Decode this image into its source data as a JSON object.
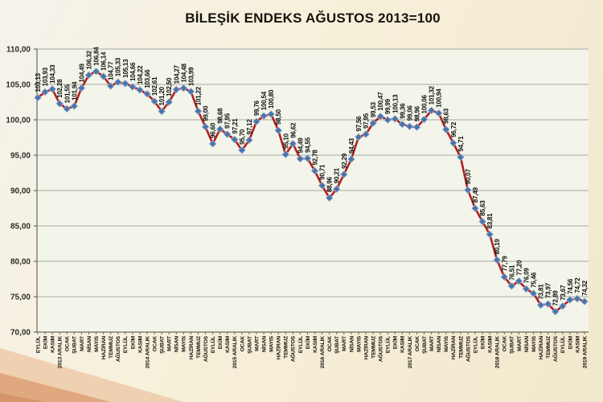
{
  "slide": {
    "corner_band_colors": [
      "#efd0b0",
      "#e0a87e",
      "#d49668"
    ]
  },
  "chart_data": {
    "type": "line",
    "title": "BİLEŞİK ENDEKS AĞUSTOS 2013=100",
    "legend": "none",
    "grid": true,
    "ylim": [
      70,
      110
    ],
    "ytick_step": 5,
    "decimal_separator": ",",
    "x": [
      "EYLÜL",
      "EKİM",
      "KASIM",
      "2013 ARALIK",
      "OCAK",
      "ŞUBAT",
      "MART",
      "NİSAN",
      "MAYIS",
      "HAZİRAN",
      "TEMMUZ",
      "AĞUSTOS",
      "EYLÜL",
      "EKİM",
      "KASIM",
      "2014 ARALIK",
      "OCAK",
      "ŞUBAT",
      "MART",
      "NİSAN",
      "MAYIS",
      "HAZİRAN",
      "TEMMUZ",
      "AĞUSTOS",
      "EYLÜL",
      "EKİM",
      "KASIM",
      "2015 ARALIK",
      "OCAK",
      "ŞUBAT",
      "MART",
      "NİSAN",
      "MAYIS",
      "HAZİRAN",
      "TEMMUZ",
      "AĞUSTOS",
      "EYLÜL",
      "EKİM",
      "KASIM",
      "2016 ARALIK",
      "OCAK",
      "ŞUBAT",
      "MART",
      "NİSAN",
      "MAYIS",
      "HAZİRAN",
      "TEMMUZ",
      "AĞUSTOS",
      "EYLÜL",
      "EKİM",
      "KASIM",
      "2017 ARALIK",
      "OCAK",
      "ŞUBAT",
      "MART",
      "NİSAN",
      "MAYIS",
      "HAZİRAN",
      "TEMMUZ",
      "AĞUSTOS",
      "EYLÜL",
      "EKİM",
      "KASIM",
      "2018 ARALIK",
      "OCAK",
      "ŞUBAT",
      "MART",
      "NİSAN",
      "MAYIS",
      "HAZİRAN",
      "TEMMUZ",
      "AĞUSTOS",
      "EYLÜL",
      "EKİM",
      "KASIM",
      "2019 ARALIK"
    ],
    "values": [
      103.13,
      103.93,
      104.33,
      102.28,
      101.55,
      101.94,
      104.49,
      106.32,
      106.84,
      106.14,
      104.77,
      105.33,
      105.13,
      104.66,
      104.22,
      103.66,
      102.61,
      101.2,
      102.5,
      104.27,
      104.48,
      103.99,
      101.22,
      99.0,
      96.6,
      98.68,
      97.95,
      97.21,
      95.7,
      97.12,
      99.76,
      100.54,
      100.8,
      98.5,
      95.1,
      96.62,
      94.49,
      94.55,
      92.78,
      90.71,
      88.96,
      90.21,
      92.29,
      94.43,
      97.56,
      97.95,
      99.53,
      100.47,
      99.99,
      100.13,
      99.36,
      99.06,
      98.96,
      100.06,
      101.32,
      100.94,
      98.63,
      96.72,
      94.71,
      90.07,
      87.49,
      85.63,
      83.81,
      80.19,
      77.79,
      76.51,
      77.2,
      76.09,
      75.46,
      73.81,
      73.97,
      72.89,
      73.67,
      74.56,
      74.72,
      74.32
    ],
    "style": {
      "line_color": "#b02020",
      "marker_color": "#4a73ab",
      "marker_edge_color": "#a3b8d6",
      "plot_bg": "#f3f5ea",
      "gridline_color": "#a8a69c",
      "axis_color": "#6b695f",
      "title_color": "#17130e",
      "data_label_color": "#0d0d0d",
      "tick_label_color": "#2f2d26"
    }
  }
}
